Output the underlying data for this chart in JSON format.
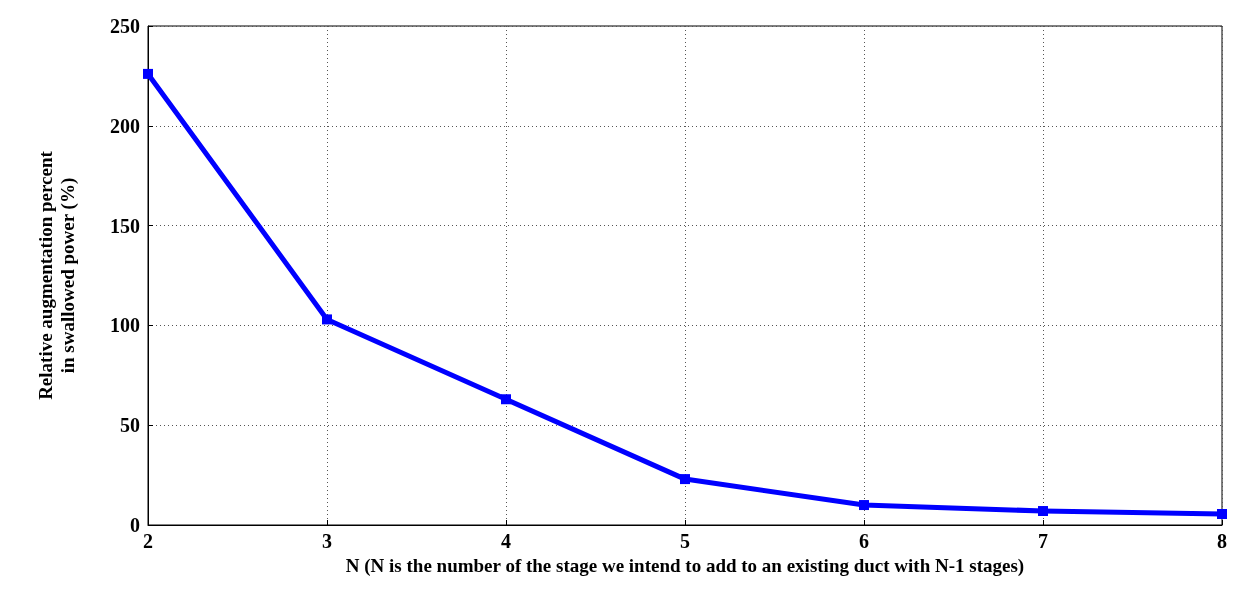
{
  "chart_data": {
    "type": "line",
    "xlabel": "N (N is the number of the stage we intend to add to an existing duct with N-1 stages)",
    "ylabel": "Relative augmentation percent\nin swallowed power (%)",
    "x": [
      2,
      3,
      4,
      5,
      6,
      7,
      8
    ],
    "series": [
      {
        "color": "#0000ff",
        "values": [
          226,
          103,
          63,
          23,
          10,
          7,
          5.5
        ]
      }
    ],
    "xlim": [
      2,
      8
    ],
    "xticks": [
      2,
      3,
      4,
      5,
      6,
      7,
      8
    ],
    "ylim": [
      0,
      250
    ],
    "yticks": [
      0,
      50,
      100,
      150,
      200,
      250
    ],
    "grid": true,
    "marker": "square",
    "line_style": "solid"
  }
}
